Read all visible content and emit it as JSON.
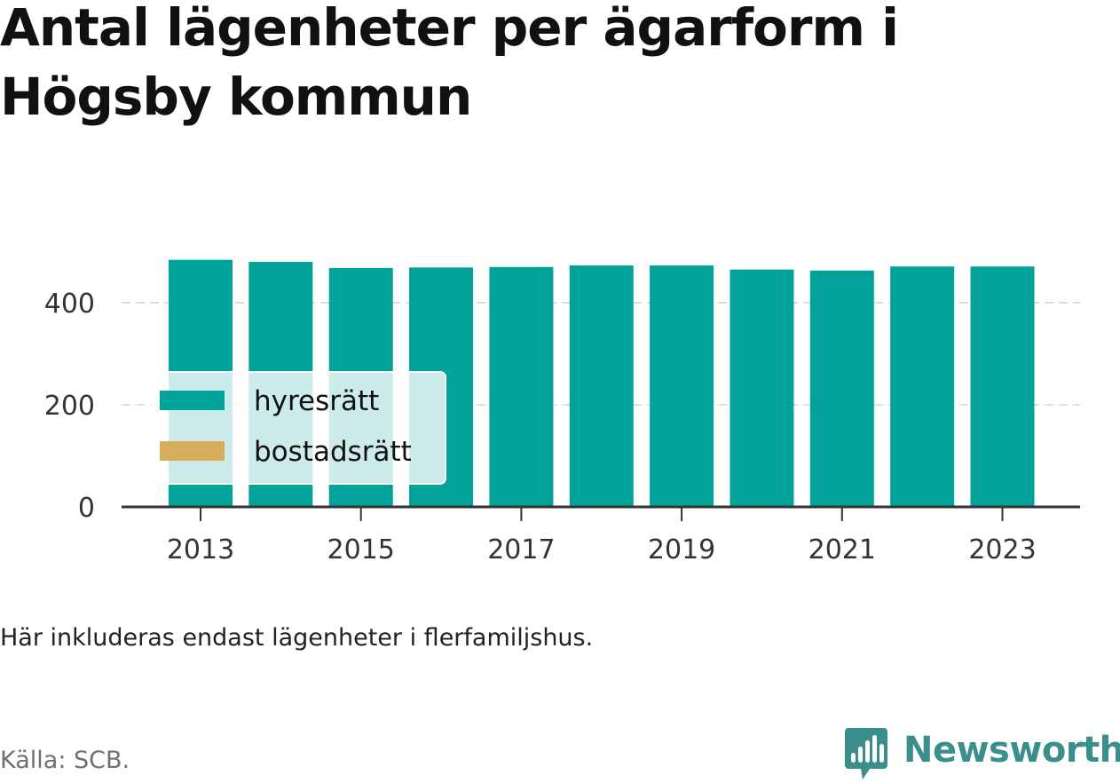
{
  "title": "Antal lägenheter per ägarform i Högsby kommun",
  "note": "Här inkluderas endast lägenheter i flerfamiljshus.",
  "source": "Källa: SCB.",
  "brand": {
    "name": "Newsworthy",
    "icon": "newsworthy-bar-chart-icon",
    "color": "#3a8f8c"
  },
  "chart_data": {
    "type": "bar",
    "stacked": true,
    "categories": [
      "2013",
      "2014",
      "2015",
      "2016",
      "2017",
      "2018",
      "2019",
      "2020",
      "2021",
      "2022",
      "2023"
    ],
    "x_tick_labels": [
      "2013",
      "2015",
      "2017",
      "2019",
      "2021",
      "2023"
    ],
    "series": [
      {
        "name": "hyresrätt",
        "color": "#00a29a",
        "values": [
          484,
          480,
          468,
          469,
          470,
          473,
          473,
          465,
          463,
          471,
          471
        ]
      },
      {
        "name": "bostadsrätt",
        "color": "#d9ad5b",
        "values": [
          0,
          0,
          0,
          0,
          0,
          0,
          0,
          0,
          0,
          0,
          0
        ]
      }
    ],
    "ylim": [
      0,
      500
    ],
    "y_ticks": [
      0,
      200,
      400
    ],
    "grid": true,
    "legend_position": "bottom-left inside plot"
  }
}
